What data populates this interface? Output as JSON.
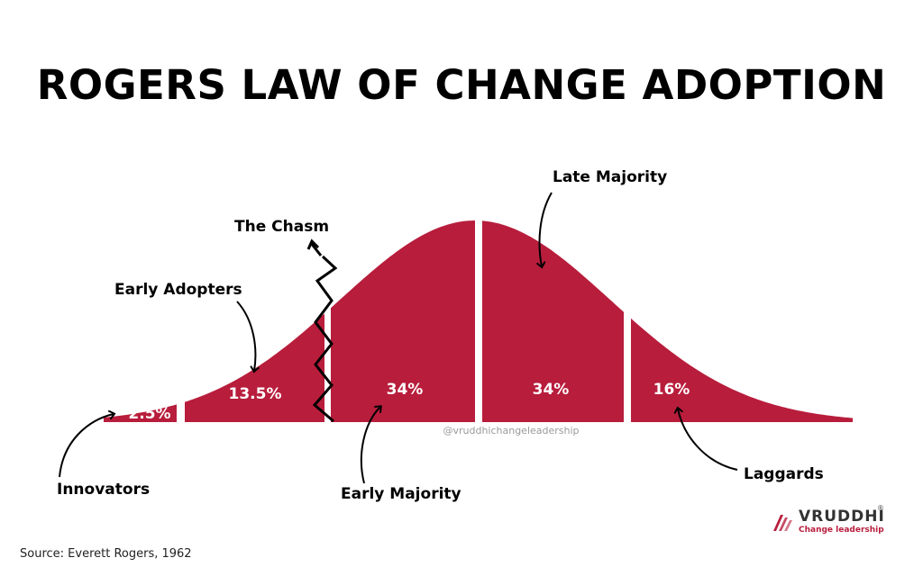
{
  "title": "ROGERS LAW OF CHANGE ADOPTION",
  "colors": {
    "curve": "#b81d3c",
    "line": "#000000"
  },
  "segments": [
    {
      "label": "Innovators",
      "percent": "2.5%"
    },
    {
      "label": "Early Adopters",
      "percent": "13.5%"
    },
    {
      "label": "Early Majority",
      "percent": "34%"
    },
    {
      "label": "Late Majority",
      "percent": "34%"
    },
    {
      "label": "Laggards",
      "percent": "16%"
    }
  ],
  "chasm_label": "The Chasm",
  "watermark": "@vruddhichangeleadership",
  "source": "Source: Everett Rogers, 1962",
  "logo": {
    "name": "VRUDDHI",
    "registered": "®",
    "tagline": "Change leadership"
  }
}
